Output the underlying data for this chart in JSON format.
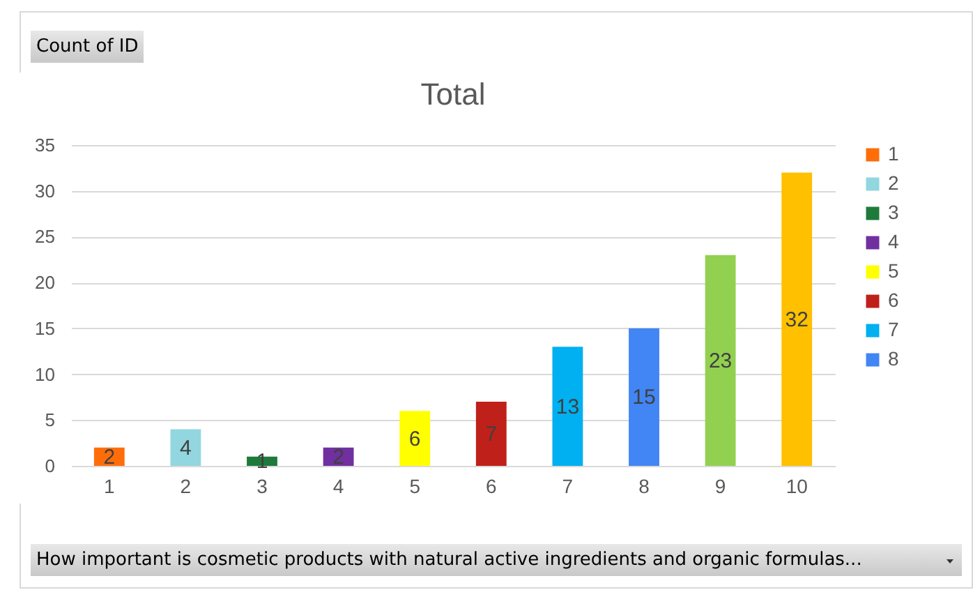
{
  "chart_data": {
    "type": "bar",
    "title": "Total",
    "categories": [
      "1",
      "2",
      "3",
      "4",
      "5",
      "6",
      "7",
      "8",
      "9",
      "10"
    ],
    "series": [
      {
        "name": "1",
        "color": "#ff6d0a",
        "values": [
          2,
          null,
          null,
          null,
          null,
          null,
          null,
          null,
          null,
          null
        ]
      },
      {
        "name": "2",
        "color": "#92d6df",
        "values": [
          null,
          4,
          null,
          null,
          null,
          null,
          null,
          null,
          null,
          null
        ]
      },
      {
        "name": "3",
        "color": "#1e7a3a",
        "values": [
          null,
          null,
          1,
          null,
          null,
          null,
          null,
          null,
          null,
          null
        ]
      },
      {
        "name": "4",
        "color": "#7030a0",
        "values": [
          null,
          null,
          null,
          2,
          null,
          null,
          null,
          null,
          null,
          null
        ]
      },
      {
        "name": "5",
        "color": "#ffff00",
        "values": [
          null,
          null,
          null,
          null,
          6,
          null,
          null,
          null,
          null,
          null
        ]
      },
      {
        "name": "6",
        "color": "#c0201a",
        "values": [
          null,
          null,
          null,
          null,
          null,
          7,
          null,
          null,
          null,
          null
        ]
      },
      {
        "name": "7",
        "color": "#00b0f0",
        "values": [
          null,
          null,
          null,
          null,
          null,
          null,
          13,
          null,
          null,
          null
        ]
      },
      {
        "name": "8",
        "color": "#4285f4",
        "values": [
          null,
          null,
          null,
          null,
          null,
          null,
          null,
          15,
          null,
          null
        ]
      },
      {
        "color": "#92d050",
        "values": [
          null,
          null,
          null,
          null,
          null,
          null,
          null,
          null,
          23,
          null
        ]
      },
      {
        "color": "#ffc000",
        "values": [
          null,
          null,
          null,
          null,
          null,
          null,
          null,
          null,
          null,
          32
        ]
      }
    ],
    "ylim": [
      0,
      35
    ],
    "yticks": [
      0,
      5,
      10,
      15,
      20,
      25,
      30,
      35
    ],
    "grid": "y",
    "legend": "right",
    "data_labels": true,
    "annotations": [
      "Count of ID",
      "How important is cosmetic products with natural active ingredients and organic formulas..."
    ]
  }
}
